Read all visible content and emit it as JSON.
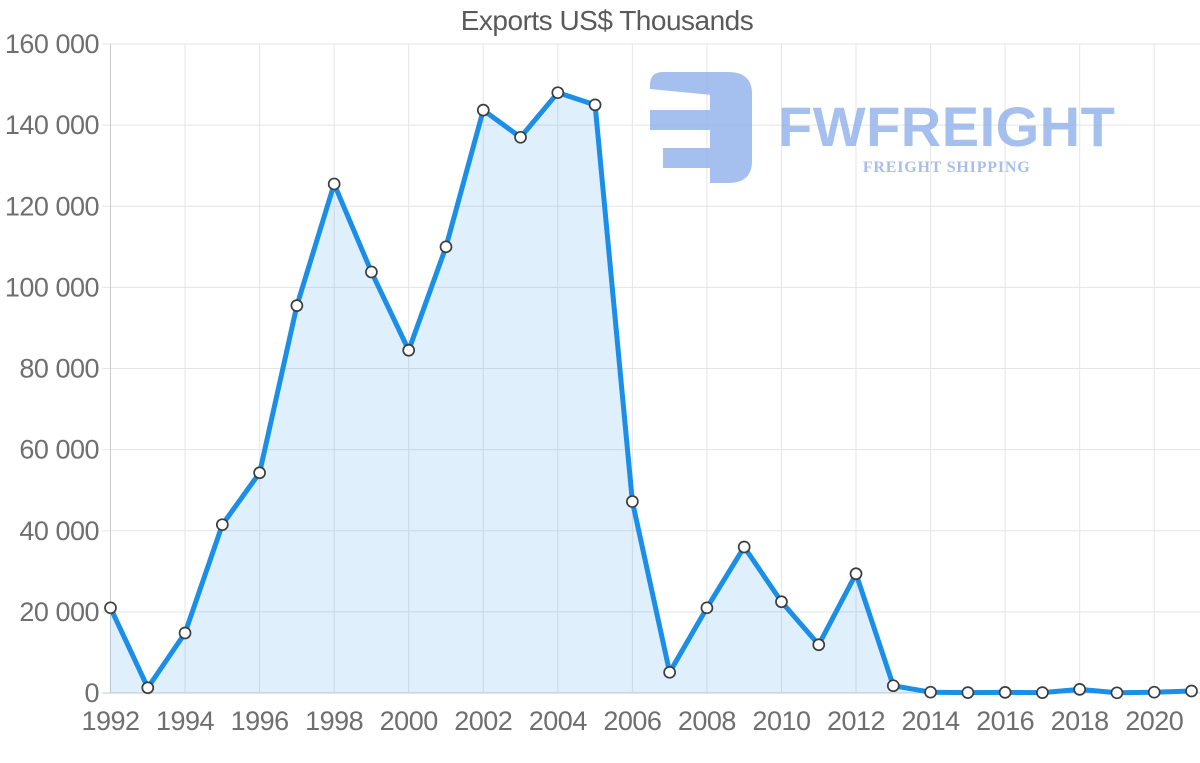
{
  "chart_data": {
    "type": "line",
    "title": "Exports US$ Thousands",
    "xlabel": "",
    "ylabel": "",
    "x": [
      1992,
      1993,
      1994,
      1995,
      1996,
      1997,
      1998,
      1999,
      2000,
      2001,
      2002,
      2003,
      2004,
      2005,
      2006,
      2007,
      2008,
      2009,
      2010,
      2011,
      2012,
      2013,
      2014,
      2015,
      2016,
      2017,
      2018,
      2019,
      2020,
      2021
    ],
    "values": [
      21000,
      1300,
      14800,
      41500,
      54300,
      95500,
      125500,
      103800,
      84500,
      110000,
      143700,
      137000,
      148000,
      145000,
      47200,
      5100,
      21000,
      36000,
      22500,
      11900,
      29400,
      1800,
      200,
      100,
      150,
      100,
      900,
      50,
      200,
      500
    ],
    "ylim": [
      0,
      160000
    ],
    "y_ticks": [
      0,
      20000,
      40000,
      60000,
      80000,
      100000,
      120000,
      140000,
      160000
    ],
    "y_tick_labels": [
      "0",
      "20 000",
      "40 000",
      "60 000",
      "80 000",
      "100 000",
      "120 000",
      "140 000",
      "160 000"
    ],
    "x_tick_years": [
      1992,
      1994,
      1996,
      1998,
      2000,
      2002,
      2004,
      2006,
      2008,
      2010,
      2012,
      2014,
      2016,
      2018,
      2020
    ],
    "x_tick_labels": [
      "1992",
      "1994",
      "1996",
      "1998",
      "2000",
      "2002",
      "2004",
      "2006",
      "2008",
      "2010",
      "2012",
      "2014",
      "2016",
      "2018",
      "2020"
    ],
    "grid": true,
    "legend": false,
    "marker": "circle",
    "area_fill": true,
    "colors": {
      "line": "#1b8fe8",
      "area": "rgba(30,143,233,0.14)",
      "marker_fill": "#ffffff",
      "marker_stroke": "#3d3d3d",
      "grid": "#e5e5e5",
      "axis": "#c9c9c9",
      "tick_label": "#6f6f6f",
      "title": "#5a5a5a"
    }
  },
  "logo": {
    "wordmark": "FWFREIGHT",
    "tagline": "FREIGHT SHIPPING",
    "color": "#8fb0ea"
  }
}
